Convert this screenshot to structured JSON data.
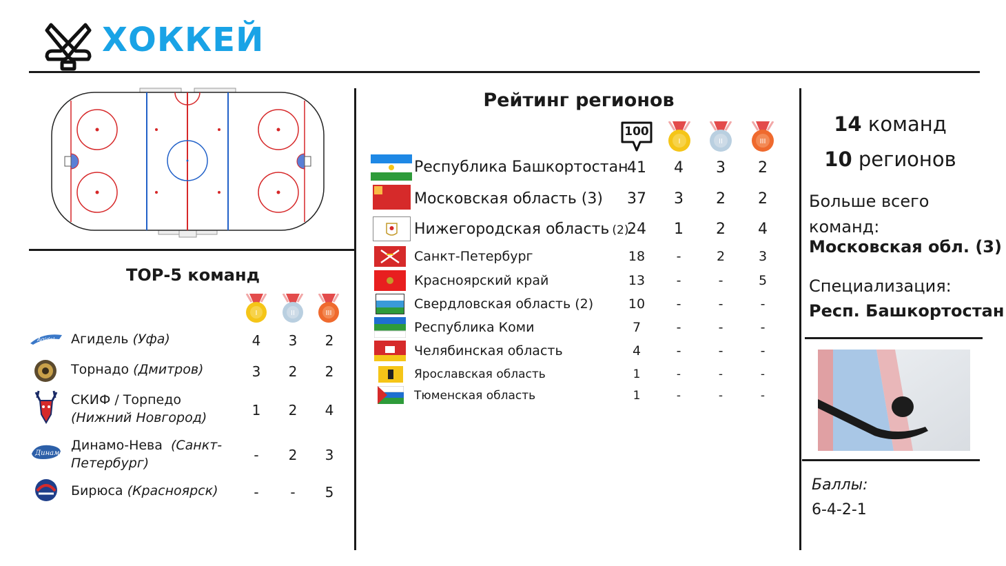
{
  "header": {
    "title": "ХОККЕЙ",
    "icon": "crossed-hockey-sticks-icon"
  },
  "colors": {
    "title": "#19a3e6",
    "gold": "#f5c518",
    "silver": "#b9cfe0",
    "bronze": "#ef6a2e",
    "rink_red": "#d62728",
    "rink_blue": "#2060c8"
  },
  "top5": {
    "title": "ТОР-5 команд",
    "teams": [
      {
        "name": "Агидель",
        "city": "(Уфа)",
        "gold": "4",
        "silver": "3",
        "bronze": "2"
      },
      {
        "name": "Торнадо",
        "city": "(Дмитров)",
        "gold": "3",
        "silver": "2",
        "bronze": "2"
      },
      {
        "name": "СКИФ / Торпедо",
        "city": "(Нижний Новгород)",
        "gold": "1",
        "silver": "2",
        "bronze": "4"
      },
      {
        "name": "Динамо-Нева",
        "city": "(Санкт-Петербург)",
        "gold": "-",
        "silver": "2",
        "bronze": "3"
      },
      {
        "name": "Бирюса",
        "city": "(Красноярск)",
        "gold": "-",
        "silver": "-",
        "bronze": "5"
      }
    ]
  },
  "ranking": {
    "title": "Рейтинг регионов",
    "points_icon_label": "100",
    "regions": [
      {
        "name": "Республика Башкортостан",
        "points": "41",
        "gold": "4",
        "silver": "3",
        "bronze": "2"
      },
      {
        "name": "Московская область (3)",
        "points": "37",
        "gold": "3",
        "silver": "2",
        "bronze": "2"
      },
      {
        "name": "Нижегородская область",
        "suffix": "(2)",
        "points": "24",
        "gold": "1",
        "silver": "2",
        "bronze": "4"
      },
      {
        "name": "Санкт-Петербург",
        "points": "18",
        "gold": "-",
        "silver": "2",
        "bronze": "3"
      },
      {
        "name": "Красноярский  край",
        "points": "13",
        "gold": "-",
        "silver": "-",
        "bronze": "5"
      },
      {
        "name": "Свердловская  область (2)",
        "points": "10",
        "gold": "-",
        "silver": "-",
        "bronze": "-"
      },
      {
        "name": "Республика Коми",
        "points": "7",
        "gold": "-",
        "silver": "-",
        "bronze": "-"
      },
      {
        "name": "Челябинская область",
        "points": "4",
        "gold": "-",
        "silver": "-",
        "bronze": "-"
      },
      {
        "name": "Ярославская область",
        "points": "1",
        "gold": "-",
        "silver": "-",
        "bronze": "-"
      },
      {
        "name": "Тюменская область",
        "points": "1",
        "gold": "-",
        "silver": "-",
        "bronze": "-"
      }
    ]
  },
  "summary": {
    "teams_num": "14",
    "teams_word": "команд",
    "regions_num": "10",
    "regions_word": "регионов",
    "most_teams_label": "Больше всего команд:",
    "most_teams_value": "Московская обл. (3)",
    "specialization_label": "Специализация:",
    "specialization_value": "Респ. Башкортостан"
  },
  "scoring": {
    "label": "Баллы:",
    "value": "6-4-2-1"
  }
}
